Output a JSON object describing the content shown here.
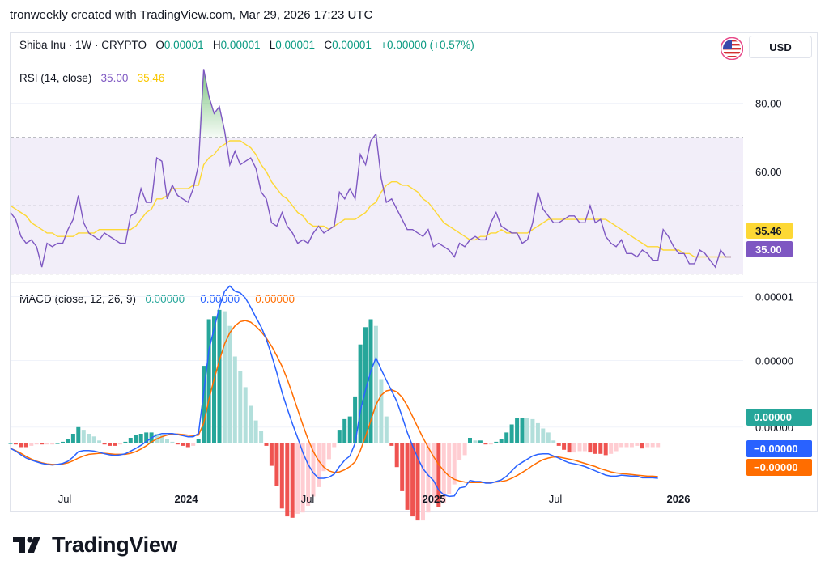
{
  "header": {
    "title": "tronweekly created with TradingView.com, Mar 29, 2026 17:23 UTC"
  },
  "symbol_legend": {
    "symbol": "Shiba Inu · 1W · CRYPTO",
    "open_label": "O",
    "open": "0.00001",
    "high_label": "H",
    "high": "0.00001",
    "low_label": "L",
    "low": "0.00001",
    "close_label": "C",
    "close": "0.00001",
    "change": "+0.00000 (+0.57%)"
  },
  "currency_button": "USD",
  "brand": "TradingView",
  "colors": {
    "rsi": "#7e57c2",
    "rsi_ma": "#fdd835",
    "macd": "#2962ff",
    "signal": "#ff6d00",
    "hist_pos_strong": "#26a69a",
    "hist_pos_weak": "#b2dfdb",
    "hist_neg_strong": "#ef5350",
    "hist_neg_weak": "#ffcdd2",
    "rsi_band": "#7e57c2"
  },
  "chart_data": [
    {
      "type": "line",
      "title": "RSI (14, close)",
      "legend_values": [
        "35.00",
        "35.46"
      ],
      "yticks": [
        "80.00",
        "60.00"
      ],
      "ylim": [
        28,
        92
      ],
      "band": [
        30,
        70
      ],
      "midline": 50,
      "last_value_tags": [
        "35.46",
        "35.00"
      ],
      "series": [
        {
          "values": [
            48,
            46,
            41,
            39,
            40,
            38,
            32,
            39,
            38,
            39,
            39,
            43,
            46,
            53,
            45,
            42,
            41,
            40,
            42,
            41,
            40,
            39,
            39,
            47,
            48,
            55,
            51,
            51,
            64,
            63,
            52,
            56,
            53,
            52,
            51,
            55,
            62,
            90,
            82,
            77,
            79,
            72,
            62,
            66,
            62,
            63,
            64,
            61,
            54,
            52,
            45,
            44,
            48,
            44,
            42,
            39,
            40,
            39,
            42,
            44,
            42,
            43,
            44,
            54,
            52,
            55,
            52,
            65,
            62,
            69,
            71,
            58,
            51,
            52,
            49,
            46,
            43,
            43,
            42,
            41,
            43,
            38,
            39,
            38,
            37,
            35,
            39,
            38,
            40,
            41,
            40,
            40,
            45,
            48,
            44,
            43,
            42,
            42,
            39,
            40,
            45,
            54,
            49,
            47,
            45,
            45,
            46,
            47,
            47,
            45,
            45,
            50,
            45,
            46,
            41,
            39,
            38,
            40,
            36,
            36,
            35,
            37,
            36,
            34,
            34,
            43,
            41,
            38,
            36,
            36,
            33,
            33,
            37,
            36,
            34,
            32,
            37,
            35,
            35
          ]
        },
        {
          "values": [
            50,
            49,
            48,
            47,
            45,
            44,
            43,
            42,
            42,
            41,
            41,
            41,
            41,
            42,
            42,
            42,
            42,
            43,
            43,
            43,
            43,
            43,
            43,
            43,
            44,
            46,
            48,
            49,
            52,
            52,
            53,
            55,
            55,
            55,
            55,
            56,
            56,
            62,
            64,
            65,
            67,
            68,
            69,
            69,
            69,
            68,
            67,
            65,
            62,
            60,
            57,
            55,
            53,
            52,
            50,
            48,
            47,
            45,
            44,
            44,
            44,
            43,
            44,
            45,
            46,
            46,
            46,
            47,
            48,
            50,
            51,
            54,
            56,
            57,
            57,
            56,
            56,
            55,
            54,
            52,
            51,
            49,
            47,
            45,
            44,
            43,
            42,
            41,
            40,
            40,
            41,
            41,
            42,
            42,
            43,
            42,
            42,
            42,
            42,
            42,
            43,
            44,
            45,
            46,
            46,
            46,
            46,
            46,
            46,
            46,
            46,
            46,
            46,
            46,
            46,
            45,
            44,
            43,
            42,
            41,
            40,
            39,
            38,
            38,
            38,
            37,
            37,
            37,
            37,
            36,
            36,
            35,
            35,
            35,
            35,
            35,
            35,
            35,
            35
          ]
        }
      ]
    },
    {
      "type": "line",
      "title": "MACD (close, 12, 26, 9)",
      "legend_values": [
        "0.00000",
        "−0.00000",
        "−0.00000"
      ],
      "yticks": [
        "0.00001",
        "0.00000",
        "0.00000"
      ],
      "last_value_tags": [
        "0.00000",
        "−0.00000",
        "−0.00000"
      ],
      "ylim": [
        -1.1,
        3.0
      ],
      "series": [
        {
          "values": [
            -0.1,
            -0.15,
            -0.22,
            -0.28,
            -0.32,
            -0.35,
            -0.38,
            -0.4,
            -0.41,
            -0.4,
            -0.38,
            -0.34,
            -0.26,
            -0.16,
            -0.14,
            -0.14,
            -0.15,
            -0.17,
            -0.2,
            -0.22,
            -0.23,
            -0.22,
            -0.2,
            -0.15,
            -0.1,
            -0.04,
            0.03,
            0.1,
            0.15,
            0.18,
            0.18,
            0.18,
            0.16,
            0.14,
            0.12,
            0.12,
            0.18,
            0.95,
            1.75,
            2.15,
            2.55,
            2.85,
            2.95,
            2.85,
            2.82,
            2.72,
            2.55,
            2.36,
            2.18,
            1.95,
            1.65,
            1.32,
            0.95,
            0.65,
            0.36,
            0.1,
            -0.18,
            -0.4,
            -0.56,
            -0.66,
            -0.66,
            -0.64,
            -0.58,
            -0.44,
            -0.32,
            -0.24,
            0.0,
            0.6,
            1.0,
            1.35,
            1.6,
            1.38,
            1.18,
            0.98,
            0.78,
            0.5,
            0.2,
            -0.05,
            -0.28,
            -0.48,
            -0.6,
            -0.7,
            -0.88,
            -0.97,
            -1.0,
            -0.99,
            -0.84,
            -0.82,
            -0.7,
            -0.72,
            -0.72,
            -0.75,
            -0.75,
            -0.72,
            -0.69,
            -0.62,
            -0.52,
            -0.42,
            -0.36,
            -0.3,
            -0.24,
            -0.21,
            -0.2,
            -0.2,
            -0.24,
            -0.28,
            -0.33,
            -0.37,
            -0.39,
            -0.41,
            -0.44,
            -0.48,
            -0.52,
            -0.56,
            -0.6,
            -0.62,
            -0.62,
            -0.6,
            -0.61,
            -0.62,
            -0.62,
            -0.65,
            -0.65,
            -0.65,
            -0.66
          ]
        },
        {
          "values": [
            -0.1,
            -0.14,
            -0.19,
            -0.25,
            -0.3,
            -0.34,
            -0.37,
            -0.39,
            -0.4,
            -0.4,
            -0.39,
            -0.37,
            -0.33,
            -0.28,
            -0.24,
            -0.21,
            -0.2,
            -0.19,
            -0.19,
            -0.2,
            -0.21,
            -0.21,
            -0.21,
            -0.19,
            -0.16,
            -0.11,
            -0.05,
            0.02,
            0.08,
            0.12,
            0.15,
            0.17,
            0.17,
            0.16,
            0.15,
            0.14,
            0.15,
            0.37,
            0.82,
            1.2,
            1.55,
            1.86,
            2.07,
            2.2,
            2.28,
            2.3,
            2.27,
            2.19,
            2.09,
            1.97,
            1.82,
            1.64,
            1.44,
            1.2,
            0.92,
            0.63,
            0.34,
            0.07,
            -0.16,
            -0.33,
            -0.45,
            -0.52,
            -0.55,
            -0.54,
            -0.5,
            -0.44,
            -0.35,
            -0.14,
            0.13,
            0.42,
            0.72,
            0.9,
            0.98,
            1.0,
            0.96,
            0.86,
            0.7,
            0.5,
            0.3,
            0.1,
            -0.08,
            -0.25,
            -0.4,
            -0.52,
            -0.62,
            -0.68,
            -0.71,
            -0.73,
            -0.74,
            -0.74,
            -0.74,
            -0.74,
            -0.74,
            -0.73,
            -0.72,
            -0.7,
            -0.66,
            -0.61,
            -0.55,
            -0.49,
            -0.42,
            -0.36,
            -0.31,
            -0.28,
            -0.26,
            -0.26,
            -0.28,
            -0.3,
            -0.32,
            -0.35,
            -0.38,
            -0.41,
            -0.44,
            -0.48,
            -0.51,
            -0.54,
            -0.56,
            -0.57,
            -0.58,
            -0.59,
            -0.6,
            -0.61,
            -0.62,
            -0.62,
            -0.63
          ]
        }
      ]
    }
  ],
  "x_axis_labels": [
    "Jul",
    "2024",
    "Jul",
    "2025",
    "Jul",
    "2026"
  ]
}
